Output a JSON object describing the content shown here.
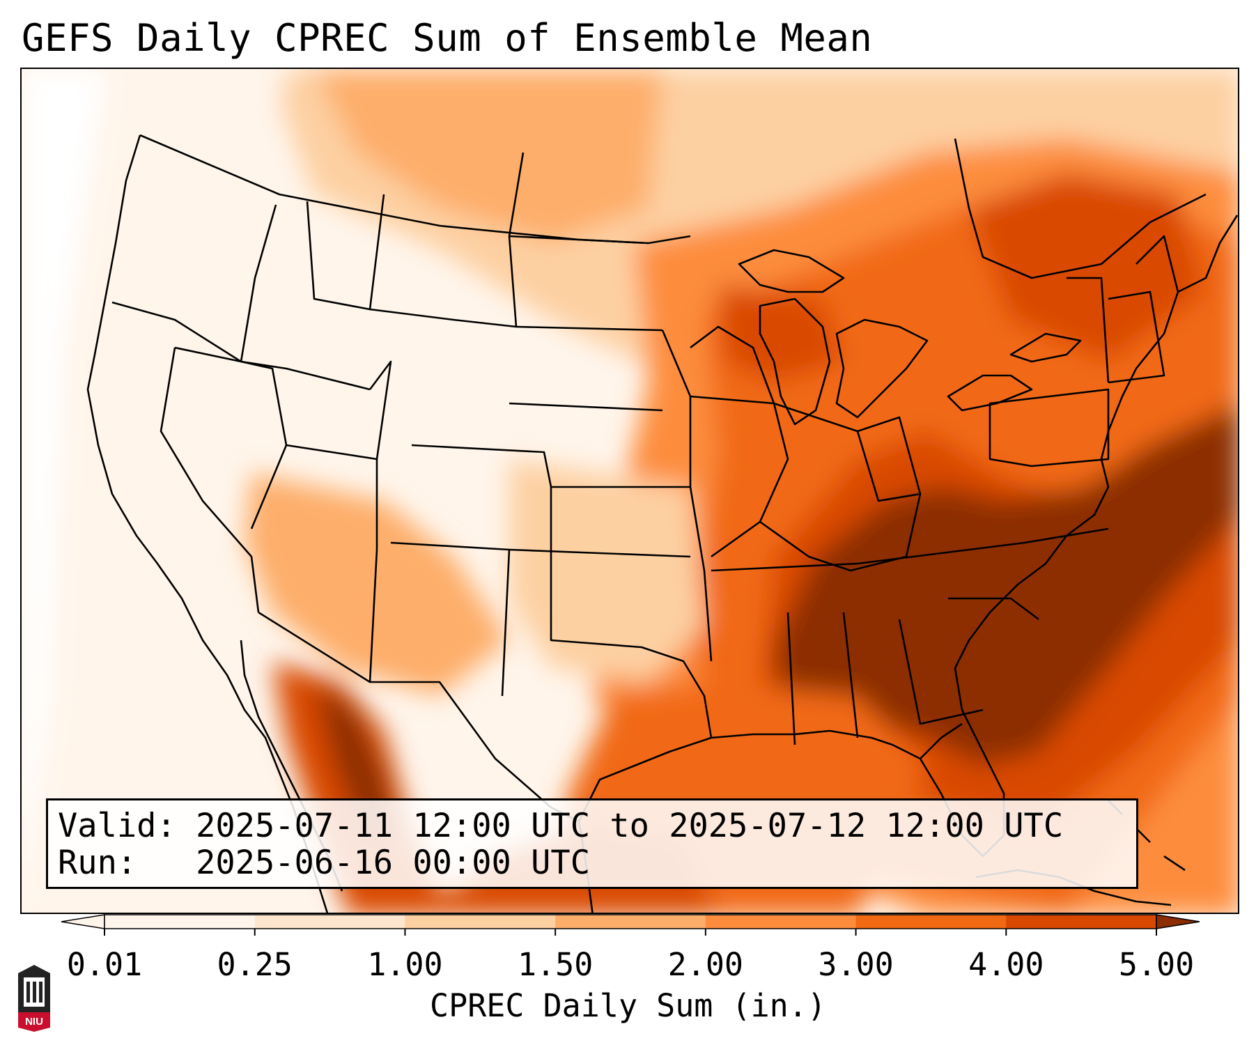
{
  "title": "GEFS Daily CPREC Sum of Ensemble Mean",
  "info": {
    "valid_key": "Valid:",
    "valid_value": "2025-07-11 12:00 UTC to 2025-07-12 12:00 UTC",
    "run_key": "Run:",
    "run_value": "2025-06-16 00:00 UTC"
  },
  "colorbar": {
    "label": "CPREC Daily Sum (in.)",
    "ticks": [
      "0.01",
      "0.25",
      "1.00",
      "1.50",
      "2.00",
      "3.00",
      "4.00",
      "5.00"
    ],
    "colors": [
      "#fff5eb",
      "#fee6ce",
      "#fdd0a2",
      "#fdae6b",
      "#fd8d3c",
      "#f16913",
      "#d94801",
      "#8c2d04"
    ],
    "extend": "both"
  },
  "logo": {
    "text": "NIU"
  },
  "map": {
    "region": "Contiguous United States",
    "projection": "Lambert Conformal",
    "colors": {
      "water_low": "#fff5eb",
      "very_low": "#fee6ce",
      "low": "#fdd0a2",
      "mid": "#fdae6b",
      "mid_high": "#fd8d3c",
      "high": "#f16913",
      "very_high": "#d94801",
      "extreme": "#8c2d04"
    }
  }
}
